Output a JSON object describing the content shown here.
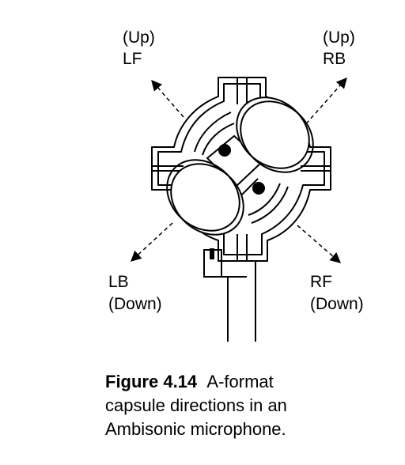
{
  "diagram": {
    "labels": {
      "lf_up": "(Up)",
      "lf": "LF",
      "rb_up": "(Up)",
      "rb": "RB",
      "lb": "LB",
      "lb_down": "(Down)",
      "rf": "RF",
      "rf_down": "(Down)"
    },
    "line_color": "#000000",
    "background": "#ffffff"
  },
  "caption": {
    "number": "Figure 4.14",
    "line1": "A-format",
    "line2": "capsule directions in an",
    "line3": "Ambisonic microphone."
  }
}
